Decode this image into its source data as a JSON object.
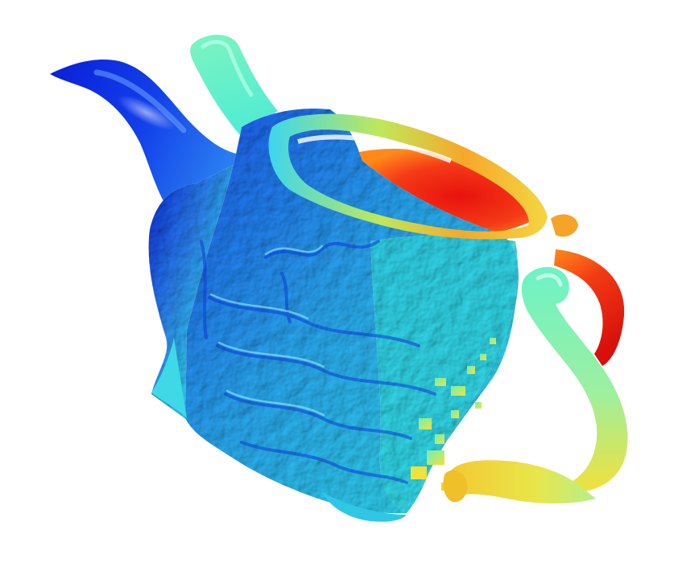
{
  "scene": {
    "subject": "teapot-3d-mesh",
    "colormap": "jet",
    "colors": {
      "background": "#ffffff",
      "deep_blue": "#0a1fd8",
      "blue": "#1a5cf0",
      "light_blue": "#2e9bf2",
      "cyan": "#2fe0ee",
      "aqua_green": "#6ff0c8",
      "yellow": "#f0e23a",
      "orange": "#ff8a1a",
      "red": "#ec1c14"
    }
  }
}
